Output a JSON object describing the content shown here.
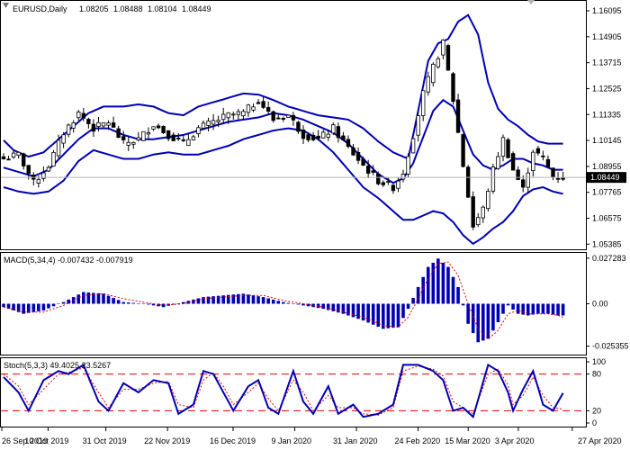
{
  "chart_data": [
    {
      "type": "candlestick",
      "panel": "price",
      "header": {
        "symbol": "EURUSD,Daily",
        "open": "1.08205",
        "high": "1.08488",
        "low": "1.08104",
        "close": "1.08449"
      },
      "last_price_label": "1.08449",
      "last_price": 1.08449,
      "y_ticks": [
        "1.16095",
        "1.14905",
        "1.13715",
        "1.12525",
        "1.11335",
        "1.10145",
        "1.08955",
        "1.07765",
        "1.06575",
        "1.05385"
      ],
      "ylim": [
        1.0515,
        1.1655
      ],
      "indicator": "Bollinger Bands",
      "bb_upper_anchors": [
        [
          0,
          1.1015
        ],
        [
          2,
          1.097
        ],
        [
          5,
          1.094
        ],
        [
          8,
          1.096
        ],
        [
          11,
          1.102
        ],
        [
          14,
          1.108
        ],
        [
          17,
          1.114
        ],
        [
          20,
          1.117
        ],
        [
          24,
          1.117
        ],
        [
          27,
          1.118
        ],
        [
          30,
          1.117
        ],
        [
          33,
          1.114
        ],
        [
          36,
          1.113
        ],
        [
          39,
          1.117
        ],
        [
          42,
          1.119
        ],
        [
          45,
          1.121
        ],
        [
          48,
          1.123
        ],
        [
          51,
          1.1225
        ],
        [
          54,
          1.12
        ],
        [
          57,
          1.117
        ],
        [
          60,
          1.115
        ],
        [
          63,
          1.113
        ],
        [
          66,
          1.112
        ],
        [
          69,
          1.111
        ],
        [
          72,
          1.107
        ],
        [
          75,
          1.101
        ],
        [
          78,
          1.096
        ],
        [
          81,
          1.093
        ],
        [
          83,
          1.115
        ],
        [
          85,
          1.138
        ],
        [
          87,
          1.146
        ],
        [
          89,
          1.148
        ],
        [
          91,
          1.156
        ],
        [
          93,
          1.159
        ],
        [
          95,
          1.15
        ],
        [
          97,
          1.128
        ],
        [
          99,
          1.116
        ],
        [
          101,
          1.111
        ],
        [
          103,
          1.108
        ],
        [
          105,
          1.104
        ],
        [
          107,
          1.101
        ],
        [
          109,
          1.1
        ],
        [
          111,
          1.1
        ],
        [
          112,
          1.1
        ]
      ],
      "bb_middle_anchors": [
        [
          0,
          1.089
        ],
        [
          3,
          1.087
        ],
        [
          6,
          1.085
        ],
        [
          9,
          1.088
        ],
        [
          12,
          1.095
        ],
        [
          15,
          1.102
        ],
        [
          18,
          1.107
        ],
        [
          21,
          1.107
        ],
        [
          24,
          1.104
        ],
        [
          27,
          1.102
        ],
        [
          30,
          1.102
        ],
        [
          33,
          1.103
        ],
        [
          36,
          1.104
        ],
        [
          39,
          1.106
        ],
        [
          42,
          1.108
        ],
        [
          45,
          1.11
        ],
        [
          48,
          1.111
        ],
        [
          51,
          1.112
        ],
        [
          54,
          1.114
        ],
        [
          57,
          1.113
        ],
        [
          60,
          1.111
        ],
        [
          63,
          1.108
        ],
        [
          66,
          1.105
        ],
        [
          69,
          1.1
        ],
        [
          72,
          1.093
        ],
        [
          75,
          1.086
        ],
        [
          78,
          1.082
        ],
        [
          80,
          1.084
        ],
        [
          82,
          1.091
        ],
        [
          84,
          1.103
        ],
        [
          86,
          1.115
        ],
        [
          88,
          1.12
        ],
        [
          90,
          1.117
        ],
        [
          92,
          1.106
        ],
        [
          94,
          1.095
        ],
        [
          96,
          1.09
        ],
        [
          98,
          1.088
        ],
        [
          100,
          1.09
        ],
        [
          102,
          1.093
        ],
        [
          104,
          1.093
        ],
        [
          106,
          1.091
        ],
        [
          108,
          1.09
        ],
        [
          110,
          1.088
        ],
        [
          112,
          1.088
        ]
      ],
      "bb_lower_anchors": [
        [
          0,
          1.08
        ],
        [
          3,
          1.078
        ],
        [
          6,
          1.077
        ],
        [
          9,
          1.078
        ],
        [
          12,
          1.083
        ],
        [
          15,
          1.092
        ],
        [
          18,
          1.097
        ],
        [
          21,
          1.095
        ],
        [
          24,
          1.093
        ],
        [
          27,
          1.093
        ],
        [
          30,
          1.095
        ],
        [
          33,
          1.096
        ],
        [
          36,
          1.095
        ],
        [
          39,
          1.095
        ],
        [
          42,
          1.097
        ],
        [
          45,
          1.099
        ],
        [
          48,
          1.102
        ],
        [
          51,
          1.104
        ],
        [
          54,
          1.106
        ],
        [
          57,
          1.107
        ],
        [
          60,
          1.106
        ],
        [
          63,
          1.102
        ],
        [
          66,
          1.096
        ],
        [
          69,
          1.088
        ],
        [
          72,
          1.08
        ],
        [
          75,
          1.075
        ],
        [
          78,
          1.069
        ],
        [
          80,
          1.065
        ],
        [
          82,
          1.065
        ],
        [
          84,
          1.067
        ],
        [
          86,
          1.069
        ],
        [
          88,
          1.068
        ],
        [
          90,
          1.064
        ],
        [
          92,
          1.058
        ],
        [
          94,
          1.054
        ],
        [
          96,
          1.057
        ],
        [
          98,
          1.061
        ],
        [
          100,
          1.064
        ],
        [
          102,
          1.069
        ],
        [
          104,
          1.076
        ],
        [
          106,
          1.079
        ],
        [
          108,
          1.08
        ],
        [
          110,
          1.078
        ],
        [
          112,
          1.077
        ]
      ],
      "close_anchors": [
        [
          0,
          1.093
        ],
        [
          3,
          1.095
        ],
        [
          6,
          1.082
        ],
        [
          9,
          1.09
        ],
        [
          12,
          1.105
        ],
        [
          15,
          1.114
        ],
        [
          18,
          1.107
        ],
        [
          21,
          1.11
        ],
        [
          24,
          1.1
        ],
        [
          27,
          1.102
        ],
        [
          30,
          1.109
        ],
        [
          33,
          1.104
        ],
        [
          36,
          1.1
        ],
        [
          39,
          1.107
        ],
        [
          42,
          1.11
        ],
        [
          45,
          1.113
        ],
        [
          48,
          1.114
        ],
        [
          51,
          1.12
        ],
        [
          54,
          1.111
        ],
        [
          57,
          1.113
        ],
        [
          60,
          1.104
        ],
        [
          63,
          1.102
        ],
        [
          66,
          1.107
        ],
        [
          69,
          1.098
        ],
        [
          72,
          1.09
        ],
        [
          75,
          1.083
        ],
        [
          78,
          1.08
        ],
        [
          80,
          1.087
        ],
        [
          82,
          1.104
        ],
        [
          84,
          1.123
        ],
        [
          86,
          1.135
        ],
        [
          88,
          1.146
        ],
        [
          90,
          1.12
        ],
        [
          92,
          1.09
        ],
        [
          94,
          1.062
        ],
        [
          96,
          1.07
        ],
        [
          98,
          1.088
        ],
        [
          100,
          1.102
        ],
        [
          102,
          1.088
        ],
        [
          104,
          1.079
        ],
        [
          106,
          1.097
        ],
        [
          108,
          1.093
        ],
        [
          110,
          1.085
        ],
        [
          112,
          1.0845
        ]
      ]
    },
    {
      "type": "bar",
      "panel": "macd",
      "header": "MACD(5,34,4) -0.007432 -0.007919",
      "y_ticks": [
        "0.027283",
        "0.00",
        "-0.025355"
      ],
      "ylim": [
        -0.0304,
        0.0304
      ],
      "macd_anchors": [
        [
          0,
          -0.002
        ],
        [
          4,
          -0.006
        ],
        [
          8,
          -0.004
        ],
        [
          12,
          0.001
        ],
        [
          16,
          0.007
        ],
        [
          20,
          0.006
        ],
        [
          24,
          0.001
        ],
        [
          28,
          0.0
        ],
        [
          32,
          -0.002
        ],
        [
          36,
          0.001
        ],
        [
          40,
          0.004
        ],
        [
          44,
          0.005
        ],
        [
          48,
          0.006
        ],
        [
          52,
          0.004
        ],
        [
          56,
          0.001
        ],
        [
          60,
          -0.001
        ],
        [
          64,
          -0.003
        ],
        [
          68,
          -0.006
        ],
        [
          72,
          -0.01
        ],
        [
          76,
          -0.015
        ],
        [
          79,
          -0.014
        ],
        [
          81,
          -0.003
        ],
        [
          83,
          0.01
        ],
        [
          85,
          0.022
        ],
        [
          87,
          0.027
        ],
        [
          89,
          0.022
        ],
        [
          91,
          0.01
        ],
        [
          93,
          -0.012
        ],
        [
          95,
          -0.023
        ],
        [
          97,
          -0.021
        ],
        [
          99,
          -0.011
        ],
        [
          101,
          -0.001
        ],
        [
          103,
          -0.006
        ],
        [
          105,
          -0.007
        ],
        [
          107,
          -0.006
        ],
        [
          109,
          -0.006
        ],
        [
          111,
          -0.007
        ],
        [
          112,
          -0.007
        ]
      ],
      "signal_anchors": [
        [
          0,
          -0.002
        ],
        [
          4,
          -0.005
        ],
        [
          8,
          -0.005
        ],
        [
          12,
          -0.001
        ],
        [
          16,
          0.005
        ],
        [
          20,
          0.006
        ],
        [
          24,
          0.003
        ],
        [
          28,
          0.001
        ],
        [
          32,
          -0.001
        ],
        [
          36,
          0.0
        ],
        [
          40,
          0.003
        ],
        [
          44,
          0.004
        ],
        [
          48,
          0.005
        ],
        [
          52,
          0.005
        ],
        [
          56,
          0.002
        ],
        [
          60,
          0.0
        ],
        [
          64,
          -0.002
        ],
        [
          68,
          -0.005
        ],
        [
          72,
          -0.008
        ],
        [
          76,
          -0.013
        ],
        [
          79,
          -0.014
        ],
        [
          81,
          -0.008
        ],
        [
          83,
          0.003
        ],
        [
          85,
          0.015
        ],
        [
          87,
          0.024
        ],
        [
          89,
          0.025
        ],
        [
          91,
          0.017
        ],
        [
          93,
          0.0
        ],
        [
          95,
          -0.015
        ],
        [
          97,
          -0.021
        ],
        [
          99,
          -0.016
        ],
        [
          101,
          -0.006
        ],
        [
          103,
          -0.004
        ],
        [
          105,
          -0.006
        ],
        [
          107,
          -0.006
        ],
        [
          109,
          -0.006
        ],
        [
          111,
          -0.007
        ],
        [
          112,
          -0.008
        ]
      ]
    },
    {
      "type": "line",
      "panel": "stochastic",
      "header": "Stoch(5,3,3) 49.4025 23.5267",
      "y_ticks": [
        "100",
        "80",
        "20",
        "0"
      ],
      "ylim": [
        0,
        100
      ],
      "levels": [
        80,
        20
      ],
      "main_anchors": [
        [
          0,
          75
        ],
        [
          3,
          50
        ],
        [
          5,
          20
        ],
        [
          8,
          70
        ],
        [
          11,
          85
        ],
        [
          13,
          80
        ],
        [
          16,
          95
        ],
        [
          19,
          35
        ],
        [
          21,
          20
        ],
        [
          24,
          65
        ],
        [
          27,
          50
        ],
        [
          30,
          70
        ],
        [
          33,
          65
        ],
        [
          35,
          15
        ],
        [
          38,
          30
        ],
        [
          40,
          85
        ],
        [
          42,
          80
        ],
        [
          44,
          50
        ],
        [
          46,
          20
        ],
        [
          49,
          60
        ],
        [
          51,
          70
        ],
        [
          53,
          25
        ],
        [
          55,
          15
        ],
        [
          58,
          85
        ],
        [
          60,
          35
        ],
        [
          62,
          15
        ],
        [
          65,
          60
        ],
        [
          67,
          15
        ],
        [
          70,
          30
        ],
        [
          72,
          10
        ],
        [
          75,
          15
        ],
        [
          78,
          30
        ],
        [
          80,
          95
        ],
        [
          83,
          95
        ],
        [
          86,
          85
        ],
        [
          88,
          70
        ],
        [
          90,
          20
        ],
        [
          92,
          25
        ],
        [
          94,
          10
        ],
        [
          97,
          95
        ],
        [
          99,
          85
        ],
        [
          101,
          50
        ],
        [
          102,
          20
        ],
        [
          104,
          55
        ],
        [
          106,
          85
        ],
        [
          108,
          30
        ],
        [
          110,
          20
        ],
        [
          112,
          49
        ]
      ],
      "signal_anchors": [
        [
          0,
          80
        ],
        [
          3,
          60
        ],
        [
          5,
          30
        ],
        [
          8,
          55
        ],
        [
          11,
          80
        ],
        [
          13,
          83
        ],
        [
          16,
          90
        ],
        [
          19,
          50
        ],
        [
          21,
          25
        ],
        [
          24,
          55
        ],
        [
          27,
          55
        ],
        [
          30,
          65
        ],
        [
          33,
          68
        ],
        [
          35,
          30
        ],
        [
          38,
          25
        ],
        [
          40,
          70
        ],
        [
          42,
          82
        ],
        [
          44,
          60
        ],
        [
          46,
          30
        ],
        [
          49,
          50
        ],
        [
          51,
          65
        ],
        [
          53,
          40
        ],
        [
          55,
          20
        ],
        [
          58,
          70
        ],
        [
          60,
          50
        ],
        [
          62,
          20
        ],
        [
          65,
          45
        ],
        [
          67,
          25
        ],
        [
          70,
          25
        ],
        [
          72,
          15
        ],
        [
          75,
          13
        ],
        [
          78,
          25
        ],
        [
          80,
          85
        ],
        [
          83,
          93
        ],
        [
          86,
          88
        ],
        [
          88,
          77
        ],
        [
          90,
          35
        ],
        [
          92,
          25
        ],
        [
          94,
          15
        ],
        [
          97,
          80
        ],
        [
          99,
          88
        ],
        [
          101,
          62
        ],
        [
          102,
          30
        ],
        [
          104,
          45
        ],
        [
          106,
          75
        ],
        [
          108,
          45
        ],
        [
          110,
          25
        ],
        [
          112,
          23
        ]
      ]
    },
    {
      "type": "axis",
      "panel": "time",
      "x_ticks": [
        "26 Sep 2019",
        "10 Oct 2019",
        "31 Oct 2019",
        "22 Nov 2019",
        "16 Dec 2019",
        "9 Jan 2020",
        "31 Jan 2020",
        "24 Feb 2020",
        "15 Mar 2020",
        "3 Apr 2020",
        "27 Apr 2020"
      ]
    }
  ]
}
